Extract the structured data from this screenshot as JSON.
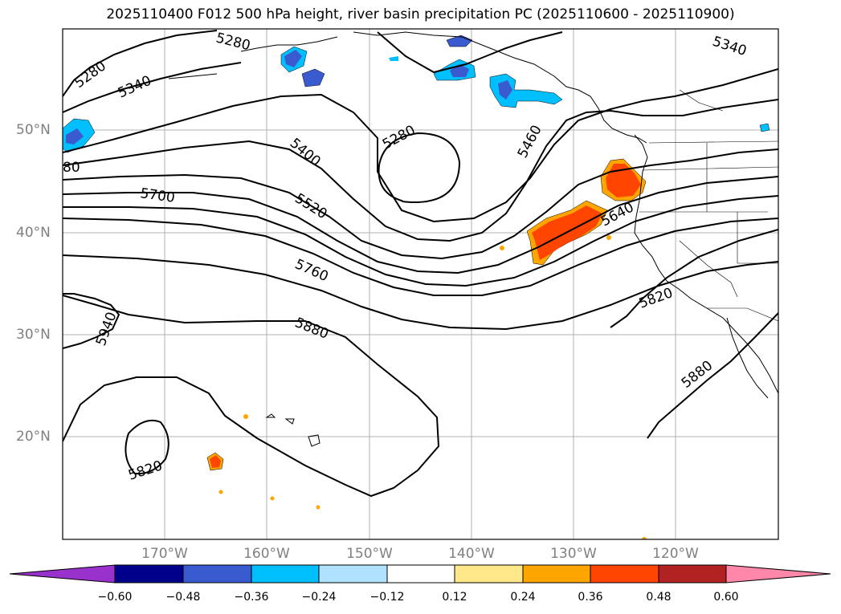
{
  "title": "2025110400 F012 500 hPa height, river basin precipitation PC (2025110600 - 2025110900)",
  "latitude_labels": [
    "50°N",
    "40°N",
    "30°N",
    "20°N"
  ],
  "longitude_labels": [
    "170°W",
    "160°W",
    "150°W",
    "140°W",
    "130°W",
    "120°W"
  ],
  "contour_labels": [
    "5280",
    "5340",
    "5280",
    "5340",
    "5400",
    "5280",
    "5460",
    "80",
    "5700",
    "5520",
    "5640",
    "5760",
    "5880",
    "5820",
    "5940",
    "5880",
    "5820"
  ],
  "colorbar": {
    "tick_labels": [
      "−0.60",
      "−0.48",
      "−0.36",
      "−0.24",
      "−0.12",
      "0.12",
      "0.24",
      "0.36",
      "0.48",
      "0.60"
    ],
    "colors": [
      "#9932cc",
      "#00008b",
      "#3a5bd0",
      "#00bfff",
      "#b0e2ff",
      "#ffffff",
      "#ffe88a",
      "#ffa500",
      "#ff4500",
      "#b22222",
      "#ff88aa"
    ]
  },
  "colors": {
    "contour": "#000000",
    "coast": "#000000",
    "grid": "#b0b0b0",
    "neg_light": "#00bfff",
    "neg_mid": "#3a5bd0",
    "pos_orange": "#ffa500",
    "pos_red": "#ff4500"
  }
}
